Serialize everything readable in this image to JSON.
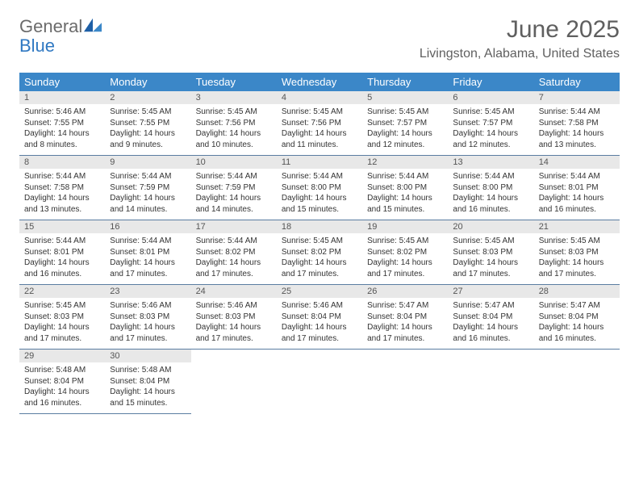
{
  "logo": {
    "text_general": "General",
    "text_blue": "Blue"
  },
  "title": "June 2025",
  "location": "Livingston, Alabama, United States",
  "colors": {
    "header_bg": "#3b87c8",
    "header_fg": "#ffffff",
    "daynum_bg": "#e8e8e8",
    "rule": "#5a7da1",
    "logo_gray": "#6b6b6b",
    "logo_blue": "#2f78c2"
  },
  "day_headers": [
    "Sunday",
    "Monday",
    "Tuesday",
    "Wednesday",
    "Thursday",
    "Friday",
    "Saturday"
  ],
  "weeks": [
    [
      {
        "n": "1",
        "sunrise": "Sunrise: 5:46 AM",
        "sunset": "Sunset: 7:55 PM",
        "daylight1": "Daylight: 14 hours",
        "daylight2": "and 8 minutes."
      },
      {
        "n": "2",
        "sunrise": "Sunrise: 5:45 AM",
        "sunset": "Sunset: 7:55 PM",
        "daylight1": "Daylight: 14 hours",
        "daylight2": "and 9 minutes."
      },
      {
        "n": "3",
        "sunrise": "Sunrise: 5:45 AM",
        "sunset": "Sunset: 7:56 PM",
        "daylight1": "Daylight: 14 hours",
        "daylight2": "and 10 minutes."
      },
      {
        "n": "4",
        "sunrise": "Sunrise: 5:45 AM",
        "sunset": "Sunset: 7:56 PM",
        "daylight1": "Daylight: 14 hours",
        "daylight2": "and 11 minutes."
      },
      {
        "n": "5",
        "sunrise": "Sunrise: 5:45 AM",
        "sunset": "Sunset: 7:57 PM",
        "daylight1": "Daylight: 14 hours",
        "daylight2": "and 12 minutes."
      },
      {
        "n": "6",
        "sunrise": "Sunrise: 5:45 AM",
        "sunset": "Sunset: 7:57 PM",
        "daylight1": "Daylight: 14 hours",
        "daylight2": "and 12 minutes."
      },
      {
        "n": "7",
        "sunrise": "Sunrise: 5:44 AM",
        "sunset": "Sunset: 7:58 PM",
        "daylight1": "Daylight: 14 hours",
        "daylight2": "and 13 minutes."
      }
    ],
    [
      {
        "n": "8",
        "sunrise": "Sunrise: 5:44 AM",
        "sunset": "Sunset: 7:58 PM",
        "daylight1": "Daylight: 14 hours",
        "daylight2": "and 13 minutes."
      },
      {
        "n": "9",
        "sunrise": "Sunrise: 5:44 AM",
        "sunset": "Sunset: 7:59 PM",
        "daylight1": "Daylight: 14 hours",
        "daylight2": "and 14 minutes."
      },
      {
        "n": "10",
        "sunrise": "Sunrise: 5:44 AM",
        "sunset": "Sunset: 7:59 PM",
        "daylight1": "Daylight: 14 hours",
        "daylight2": "and 14 minutes."
      },
      {
        "n": "11",
        "sunrise": "Sunrise: 5:44 AM",
        "sunset": "Sunset: 8:00 PM",
        "daylight1": "Daylight: 14 hours",
        "daylight2": "and 15 minutes."
      },
      {
        "n": "12",
        "sunrise": "Sunrise: 5:44 AM",
        "sunset": "Sunset: 8:00 PM",
        "daylight1": "Daylight: 14 hours",
        "daylight2": "and 15 minutes."
      },
      {
        "n": "13",
        "sunrise": "Sunrise: 5:44 AM",
        "sunset": "Sunset: 8:00 PM",
        "daylight1": "Daylight: 14 hours",
        "daylight2": "and 16 minutes."
      },
      {
        "n": "14",
        "sunrise": "Sunrise: 5:44 AM",
        "sunset": "Sunset: 8:01 PM",
        "daylight1": "Daylight: 14 hours",
        "daylight2": "and 16 minutes."
      }
    ],
    [
      {
        "n": "15",
        "sunrise": "Sunrise: 5:44 AM",
        "sunset": "Sunset: 8:01 PM",
        "daylight1": "Daylight: 14 hours",
        "daylight2": "and 16 minutes."
      },
      {
        "n": "16",
        "sunrise": "Sunrise: 5:44 AM",
        "sunset": "Sunset: 8:01 PM",
        "daylight1": "Daylight: 14 hours",
        "daylight2": "and 17 minutes."
      },
      {
        "n": "17",
        "sunrise": "Sunrise: 5:44 AM",
        "sunset": "Sunset: 8:02 PM",
        "daylight1": "Daylight: 14 hours",
        "daylight2": "and 17 minutes."
      },
      {
        "n": "18",
        "sunrise": "Sunrise: 5:45 AM",
        "sunset": "Sunset: 8:02 PM",
        "daylight1": "Daylight: 14 hours",
        "daylight2": "and 17 minutes."
      },
      {
        "n": "19",
        "sunrise": "Sunrise: 5:45 AM",
        "sunset": "Sunset: 8:02 PM",
        "daylight1": "Daylight: 14 hours",
        "daylight2": "and 17 minutes."
      },
      {
        "n": "20",
        "sunrise": "Sunrise: 5:45 AM",
        "sunset": "Sunset: 8:03 PM",
        "daylight1": "Daylight: 14 hours",
        "daylight2": "and 17 minutes."
      },
      {
        "n": "21",
        "sunrise": "Sunrise: 5:45 AM",
        "sunset": "Sunset: 8:03 PM",
        "daylight1": "Daylight: 14 hours",
        "daylight2": "and 17 minutes."
      }
    ],
    [
      {
        "n": "22",
        "sunrise": "Sunrise: 5:45 AM",
        "sunset": "Sunset: 8:03 PM",
        "daylight1": "Daylight: 14 hours",
        "daylight2": "and 17 minutes."
      },
      {
        "n": "23",
        "sunrise": "Sunrise: 5:46 AM",
        "sunset": "Sunset: 8:03 PM",
        "daylight1": "Daylight: 14 hours",
        "daylight2": "and 17 minutes."
      },
      {
        "n": "24",
        "sunrise": "Sunrise: 5:46 AM",
        "sunset": "Sunset: 8:03 PM",
        "daylight1": "Daylight: 14 hours",
        "daylight2": "and 17 minutes."
      },
      {
        "n": "25",
        "sunrise": "Sunrise: 5:46 AM",
        "sunset": "Sunset: 8:04 PM",
        "daylight1": "Daylight: 14 hours",
        "daylight2": "and 17 minutes."
      },
      {
        "n": "26",
        "sunrise": "Sunrise: 5:47 AM",
        "sunset": "Sunset: 8:04 PM",
        "daylight1": "Daylight: 14 hours",
        "daylight2": "and 17 minutes."
      },
      {
        "n": "27",
        "sunrise": "Sunrise: 5:47 AM",
        "sunset": "Sunset: 8:04 PM",
        "daylight1": "Daylight: 14 hours",
        "daylight2": "and 16 minutes."
      },
      {
        "n": "28",
        "sunrise": "Sunrise: 5:47 AM",
        "sunset": "Sunset: 8:04 PM",
        "daylight1": "Daylight: 14 hours",
        "daylight2": "and 16 minutes."
      }
    ],
    [
      {
        "n": "29",
        "sunrise": "Sunrise: 5:48 AM",
        "sunset": "Sunset: 8:04 PM",
        "daylight1": "Daylight: 14 hours",
        "daylight2": "and 16 minutes."
      },
      {
        "n": "30",
        "sunrise": "Sunrise: 5:48 AM",
        "sunset": "Sunset: 8:04 PM",
        "daylight1": "Daylight: 14 hours",
        "daylight2": "and 15 minutes."
      },
      {
        "empty": true
      },
      {
        "empty": true
      },
      {
        "empty": true
      },
      {
        "empty": true
      },
      {
        "empty": true
      }
    ]
  ]
}
